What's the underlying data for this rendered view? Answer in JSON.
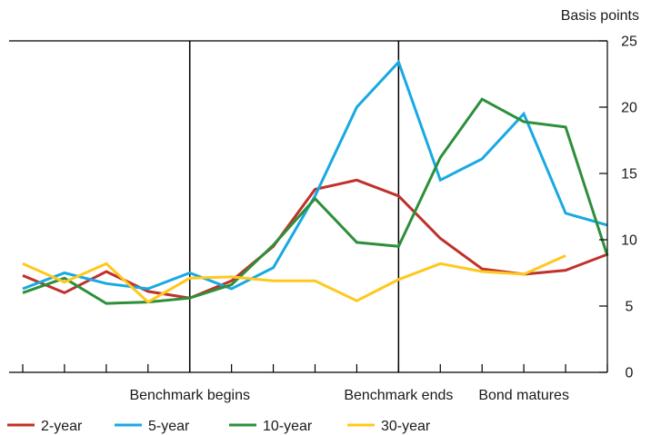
{
  "chart_data": {
    "type": "line",
    "title": "",
    "xlabel": "",
    "ylabel": "Basis points",
    "y_axis_side": "right",
    "ylim": [
      0,
      25
    ],
    "yticks": [
      0,
      5,
      10,
      15,
      20,
      25
    ],
    "x": [
      0,
      1,
      2,
      3,
      4,
      5,
      6,
      7,
      8,
      9,
      10,
      11,
      12,
      13,
      14
    ],
    "xlim": [
      0,
      14
    ],
    "x_category_labels": [
      {
        "x": 4,
        "label": "Benchmark begins"
      },
      {
        "x": 9,
        "label": "Benchmark ends"
      },
      {
        "x": 12,
        "label": "Bond matures"
      }
    ],
    "vertical_lines": [
      4,
      9
    ],
    "grid": false,
    "legend_position": "bottom-left",
    "series": [
      {
        "name": "2-year",
        "color": "#c0312b",
        "values": [
          7.3,
          6.0,
          7.6,
          6.1,
          5.6,
          6.9,
          9.5,
          13.8,
          14.5,
          13.3,
          10.1,
          7.8,
          7.4,
          7.7,
          8.9
        ]
      },
      {
        "name": "5-year",
        "color": "#19a9e2",
        "values": [
          6.3,
          7.5,
          6.7,
          6.3,
          7.5,
          6.3,
          7.9,
          13.3,
          20.0,
          23.4,
          14.5,
          16.1,
          19.5,
          12.0,
          11.1
        ]
      },
      {
        "name": "10-year",
        "color": "#2e8f3a",
        "values": [
          6.0,
          7.1,
          5.2,
          5.3,
          5.6,
          6.6,
          9.6,
          13.1,
          9.8,
          9.5,
          16.2,
          20.6,
          18.9,
          18.5,
          8.8
        ]
      },
      {
        "name": "30-year",
        "color": "#ffc81e",
        "values": [
          8.2,
          6.8,
          8.2,
          5.3,
          7.1,
          7.2,
          6.9,
          6.9,
          5.4,
          7.0,
          8.2,
          7.6,
          7.4,
          8.8,
          null
        ]
      }
    ]
  }
}
